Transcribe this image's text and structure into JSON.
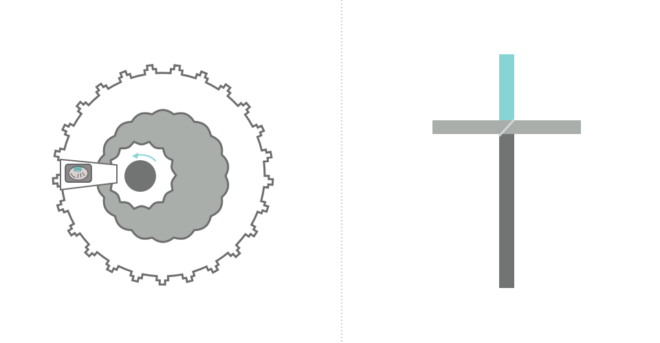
{
  "figure": {
    "left_panel": {
      "view": "top",
      "outer_ring_teeth": 25,
      "inner_eccentric_bumps": 18,
      "inner_hole_bumps": 14,
      "rotation_arrow": "counterclockwise",
      "side_window_icon": "cutaway-window-icon"
    },
    "right_panel": {
      "view": "side",
      "parts": [
        "vertical-top-bar",
        "horizontal-bar",
        "vertical-bottom-bar",
        "diagonal-link"
      ]
    },
    "divider": "dotted-vertical-line"
  },
  "colors": {
    "background": "#ffffff",
    "outline": "#6e6e6e",
    "fill_light": "#a9aeab",
    "fill_dark": "#717473",
    "accent": "#86d5d4",
    "window_fill": "#d6d6d6",
    "divider": "#bfbfbf"
  }
}
